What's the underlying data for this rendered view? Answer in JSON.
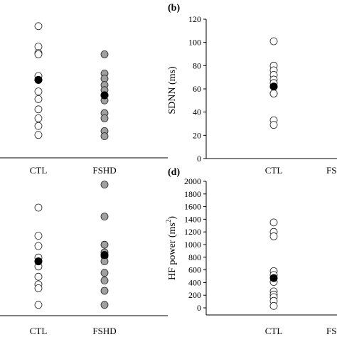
{
  "panels": [
    {
      "label": "",
      "ylabel": "",
      "categories": [
        "CTL",
        "FSHD"
      ],
      "ylim": [
        0,
        1
      ],
      "yticks": [],
      "show_yaxis": false,
      "series": [
        {
          "category": "CTL",
          "fill": "#ffffff",
          "values": [
            0.94,
            0.78,
            0.73,
            0.72,
            0.55,
            0.52,
            0.43,
            0.37,
            0.29,
            0.22,
            0.16,
            0.09
          ],
          "mean": 0.52
        },
        {
          "category": "FSHD",
          "fill": "#a0a0a0",
          "values": [
            0.72,
            0.57,
            0.53,
            0.48,
            0.44,
            0.4,
            0.36,
            0.26,
            0.22,
            0.12,
            0.08
          ],
          "mean": 0.4
        }
      ]
    },
    {
      "label": "(b)",
      "ylabel": "SDNN (ms)",
      "ylabel_sup": "",
      "ylabel_after": "",
      "categories": [
        "CTL",
        "FSHD"
      ],
      "ylim": [
        0,
        120
      ],
      "yticks": [
        "0",
        "20",
        "40",
        "60",
        "80",
        "100",
        "120"
      ],
      "show_yaxis": true,
      "series": [
        {
          "category": "CTL",
          "fill": "#ffffff",
          "values": [
            101,
            80,
            76,
            72,
            68,
            65,
            62,
            56,
            56,
            33,
            29
          ],
          "mean": 62
        }
      ]
    },
    {
      "label": "",
      "ylabel": "",
      "categories": [
        "CTL",
        "FSHD"
      ],
      "ylim": [
        0,
        1
      ],
      "yticks": [],
      "show_yaxis": false,
      "series": [
        {
          "category": "CTL",
          "fill": "#ffffff",
          "values": [
            0.8,
            0.58,
            0.5,
            0.41,
            0.38,
            0.34,
            0.26,
            0.2,
            0.17,
            0.04
          ],
          "mean": 0.38
        },
        {
          "category": "FSHD",
          "fill": "#a0a0a0",
          "values": [
            0.98,
            0.73,
            0.51,
            0.45,
            0.42,
            0.38,
            0.29,
            0.23,
            0.15,
            0.04
          ],
          "mean": 0.43
        }
      ]
    },
    {
      "label": "(d)",
      "ylabel": "HF power (ms",
      "ylabel_sup": "2",
      "ylabel_after": ")",
      "categories": [
        "CTL",
        "FSHD"
      ],
      "ylim": [
        0,
        2000
      ],
      "yticks": [
        "0",
        "200",
        "400",
        "600",
        "800",
        "1000",
        "1200",
        "1400",
        "1600",
        "1800",
        "2000"
      ],
      "show_yaxis": true,
      "series": [
        {
          "category": "CTL",
          "fill": "#ffffff",
          "values": [
            1350,
            1200,
            1130,
            580,
            520,
            410,
            260,
            210,
            170,
            110,
            30
          ],
          "mean": 470
        }
      ]
    }
  ],
  "chart_data": [
    {
      "type": "scatter",
      "title": "",
      "xlabel": "",
      "ylabel": "",
      "categories": [
        "CTL",
        "FSHD"
      ],
      "series": [
        {
          "name": "CTL",
          "values": [
            0.94,
            0.78,
            0.73,
            0.72,
            0.55,
            0.52,
            0.43,
            0.37,
            0.29,
            0.22,
            0.16,
            0.09
          ],
          "mean": 0.52
        },
        {
          "name": "FSHD",
          "values": [
            0.72,
            0.57,
            0.53,
            0.48,
            0.44,
            0.4,
            0.36,
            0.26,
            0.22,
            0.12,
            0.08
          ],
          "mean": 0.4
        }
      ],
      "note": "y axis not visible (cropped)"
    },
    {
      "type": "scatter",
      "title": "(b)",
      "xlabel": "",
      "ylabel": "SDNN (ms)",
      "categories": [
        "CTL",
        "FSHD"
      ],
      "ylim": [
        0,
        120
      ],
      "series": [
        {
          "name": "CTL",
          "values": [
            101,
            80,
            76,
            72,
            68,
            65,
            62,
            56,
            56,
            33,
            29
          ],
          "mean": 62
        }
      ]
    },
    {
      "type": "scatter",
      "title": "",
      "xlabel": "",
      "ylabel": "",
      "categories": [
        "CTL",
        "FSHD"
      ],
      "series": [
        {
          "name": "CTL",
          "values": [
            0.8,
            0.58,
            0.5,
            0.41,
            0.38,
            0.34,
            0.26,
            0.2,
            0.17,
            0.04
          ],
          "mean": 0.38
        },
        {
          "name": "FSHD",
          "values": [
            0.98,
            0.73,
            0.51,
            0.45,
            0.42,
            0.38,
            0.29,
            0.23,
            0.15,
            0.04
          ],
          "mean": 0.43
        }
      ],
      "note": "y axis not visible (cropped)"
    },
    {
      "type": "scatter",
      "title": "(d)",
      "xlabel": "",
      "ylabel": "HF power (ms2)",
      "categories": [
        "CTL",
        "FSHD"
      ],
      "ylim": [
        0,
        2000
      ],
      "series": [
        {
          "name": "CTL",
          "values": [
            1350,
            1200,
            1130,
            580,
            520,
            410,
            260,
            210,
            170,
            110,
            30
          ],
          "mean": 470
        }
      ]
    }
  ]
}
